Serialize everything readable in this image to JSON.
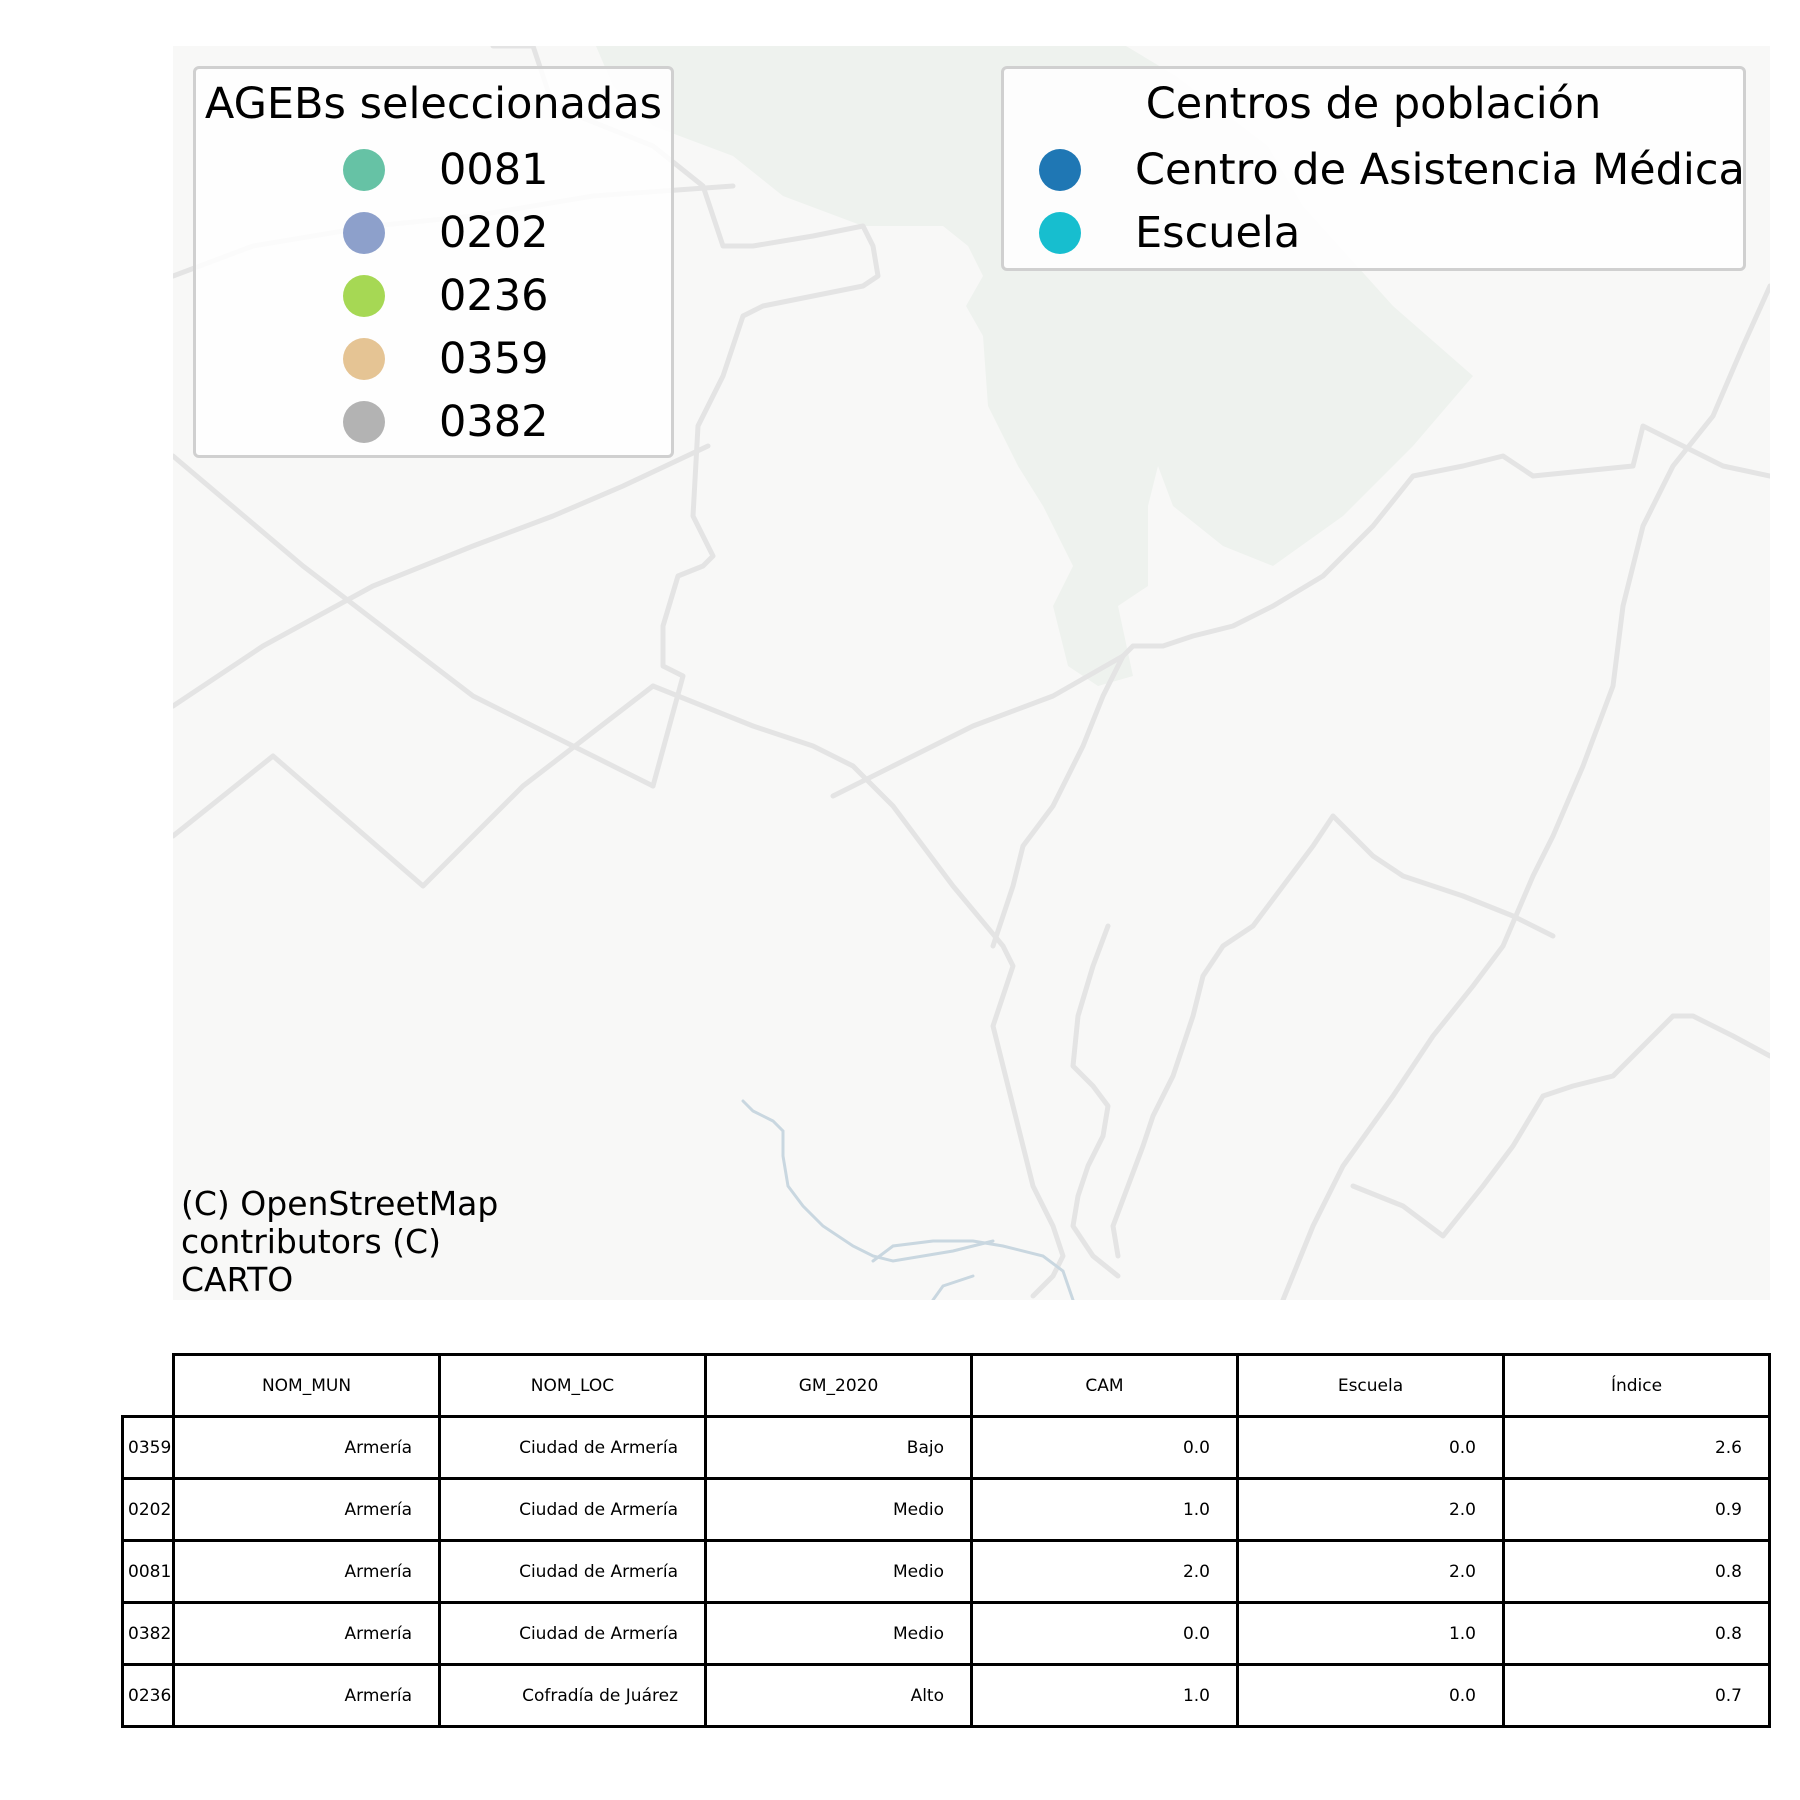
{
  "legends": {
    "ageb": {
      "title": "AGEBs seleccionadas",
      "items": [
        {
          "label": "0081",
          "color": "#66c2a5"
        },
        {
          "label": "0202",
          "color": "#8da0cb"
        },
        {
          "label": "0236",
          "color": "#a6d854"
        },
        {
          "label": "0359",
          "color": "#e5c494"
        },
        {
          "label": "0382",
          "color": "#b3b3b3"
        }
      ]
    },
    "centros": {
      "title": "Centros de población",
      "items": [
        {
          "label": "Centro de Asistencia Médica",
          "color": "#1f77b4"
        },
        {
          "label": "Escuela",
          "color": "#17becf"
        }
      ]
    }
  },
  "attribution": "(C) OpenStreetMap\ncontributors (C)\nCARTO",
  "table": {
    "columns": [
      "NOM_MUN",
      "NOM_LOC",
      "GM_2020",
      "CAM",
      "Escuela",
      "Índice"
    ],
    "rows": [
      {
        "id": "0359",
        "cells": [
          "Armería",
          "Ciudad de Armería",
          "Bajo",
          "0.0",
          "0.0",
          "2.6"
        ]
      },
      {
        "id": "0202",
        "cells": [
          "Armería",
          "Ciudad de Armería",
          "Medio",
          "1.0",
          "2.0",
          "0.9"
        ]
      },
      {
        "id": "0081",
        "cells": [
          "Armería",
          "Ciudad de Armería",
          "Medio",
          "2.0",
          "2.0",
          "0.8"
        ]
      },
      {
        "id": "0382",
        "cells": [
          "Armería",
          "Ciudad de Armería",
          "Medio",
          "0.0",
          "1.0",
          "0.8"
        ]
      },
      {
        "id": "0236",
        "cells": [
          "Armería",
          "Cofradía de Juárez",
          "Alto",
          "1.0",
          "0.0",
          "0.7"
        ]
      }
    ]
  },
  "colors": {
    "basemap": "#f8f8f7",
    "road": "#e6e6e6",
    "water": "#c9d7e0",
    "park": "#eef2ee"
  }
}
